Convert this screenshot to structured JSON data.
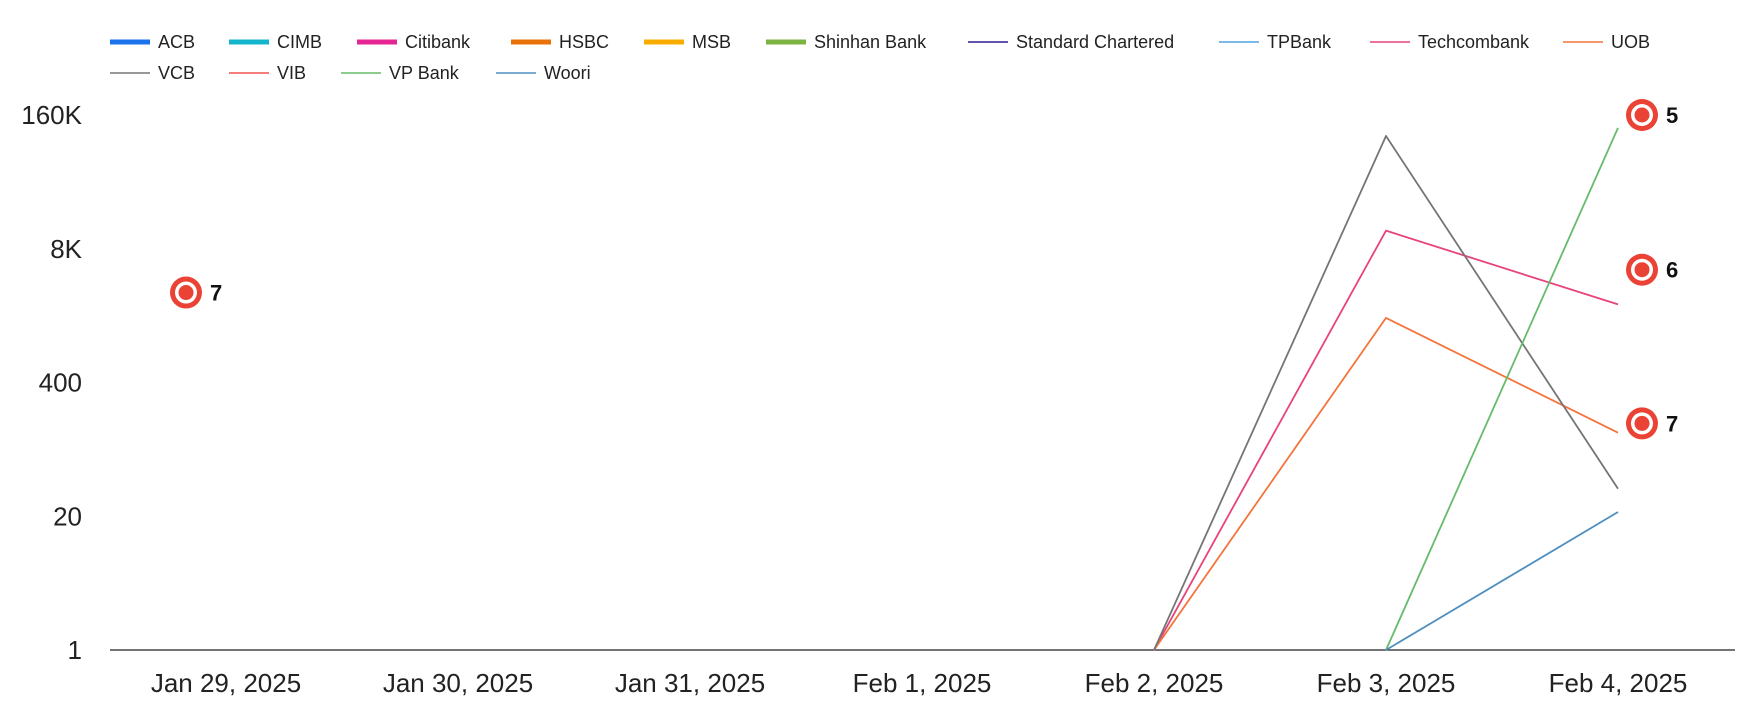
{
  "chart_data": {
    "type": "line",
    "y_scale": "log",
    "ylim": [
      1,
      160000
    ],
    "y_ticks": [
      {
        "value": 1,
        "label": "1"
      },
      {
        "value": 20,
        "label": "20"
      },
      {
        "value": 400,
        "label": "400"
      },
      {
        "value": 8000,
        "label": "8K"
      },
      {
        "value": 160000,
        "label": "160K"
      }
    ],
    "categories": [
      "Jan 29, 2025",
      "Jan 30, 2025",
      "Jan 31, 2025",
      "Feb 1, 2025",
      "Feb 2, 2025",
      "Feb 3, 2025",
      "Feb 4, 2025"
    ],
    "legend_position": "top",
    "grid": false,
    "series": [
      {
        "name": "ACB",
        "color": "#1a73e8",
        "legend_style": "thick",
        "values": [
          null,
          null,
          null,
          null,
          null,
          null,
          null
        ]
      },
      {
        "name": "CIMB",
        "color": "#12b5cb",
        "legend_style": "thick",
        "values": [
          null,
          null,
          null,
          null,
          null,
          null,
          null
        ]
      },
      {
        "name": "Citibank",
        "color": "#e52592",
        "legend_style": "thick",
        "values": [
          null,
          null,
          null,
          null,
          null,
          null,
          null
        ]
      },
      {
        "name": "HSBC",
        "color": "#e8710a",
        "legend_style": "thick",
        "values": [
          null,
          null,
          null,
          null,
          null,
          null,
          null
        ]
      },
      {
        "name": "MSB",
        "color": "#f9ab00",
        "legend_style": "thick",
        "values": [
          null,
          null,
          null,
          null,
          null,
          null,
          null
        ]
      },
      {
        "name": "Shinhan Bank",
        "color": "#7cb342",
        "legend_style": "thick",
        "values": [
          null,
          null,
          null,
          null,
          null,
          null,
          null
        ]
      },
      {
        "name": "Standard Chartered",
        "color": "#311b92",
        "legend_style": "thin",
        "values": [
          null,
          null,
          null,
          null,
          null,
          null,
          null
        ]
      },
      {
        "name": "TPBank",
        "color": "#4fa3e0",
        "legend_style": "thin",
        "values": [
          null,
          null,
          null,
          null,
          null,
          null,
          null
        ]
      },
      {
        "name": "Techcombank",
        "color": "#e8437a",
        "legend_style": "thin",
        "values": [
          null,
          null,
          null,
          null,
          1,
          12000,
          2300
        ]
      },
      {
        "name": "UOB",
        "color": "#f4743b",
        "legend_style": "thin",
        "values": [
          null,
          null,
          null,
          null,
          1,
          1700,
          130
        ]
      },
      {
        "name": "VCB",
        "color": "#757575",
        "legend_style": "thin",
        "values": [
          null,
          null,
          null,
          null,
          1,
          100000,
          37
        ]
      },
      {
        "name": "VIB",
        "color": "#ef5350",
        "legend_style": "thin",
        "values": [
          null,
          null,
          null,
          null,
          1,
          null,
          null
        ]
      },
      {
        "name": "VP Bank",
        "color": "#66bb6a",
        "legend_style": "thin",
        "values": [
          null,
          null,
          null,
          null,
          null,
          1,
          120000
        ]
      },
      {
        "name": "Woori",
        "color": "#4f8fc0",
        "legend_style": "thin",
        "values": [
          null,
          null,
          null,
          null,
          null,
          1,
          22
        ]
      }
    ],
    "annotations": [
      {
        "category": "Jan 29, 2025",
        "value": 3000,
        "label": "7"
      },
      {
        "category": "Feb 4, 2025",
        "value": 160000,
        "label": "5"
      },
      {
        "category": "Feb 4, 2025",
        "value": 5000,
        "label": "6"
      },
      {
        "category": "Feb 4, 2025",
        "value": 160,
        "label": "7"
      }
    ]
  }
}
